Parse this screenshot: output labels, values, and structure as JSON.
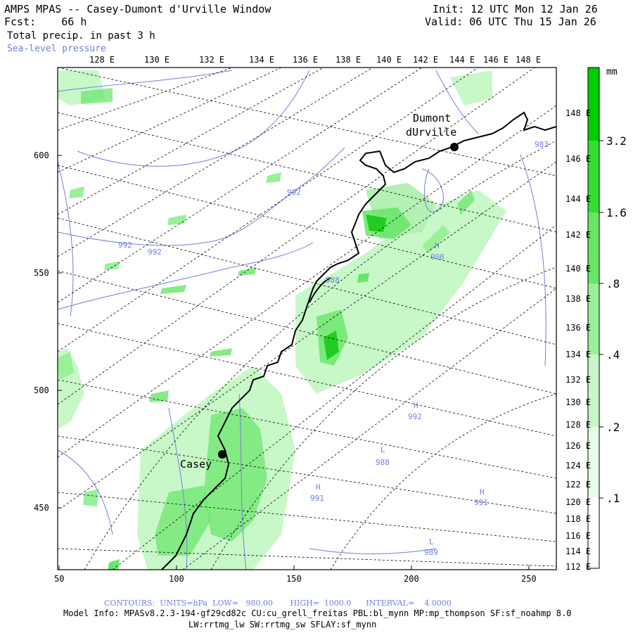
{
  "header": {
    "title": "AMPS MPAS -- Casey-Dumont d'Urville Window",
    "forecast": "Fcst:    66 h",
    "field": "Total precip. in past 3 h",
    "overlay": "Sea-level pressure",
    "init": "Init: 12 UTC Mon 12 Jan 26",
    "valid": "Valid: 06 UTC Thu 15 Jan 26"
  },
  "top_lon_labels": [
    "128 E",
    "130 E",
    "132 E",
    "134 E",
    "136 E",
    "138 E",
    "140 E",
    "142 E",
    "144 E",
    "146 E",
    "148 E"
  ],
  "right_lon_labels": [
    "148 E",
    "146 E",
    "144 E",
    "142 E",
    "140 E",
    "138 E",
    "136 E",
    "134 E",
    "132 E",
    "130 E",
    "128 E",
    "126 E",
    "124 E",
    "122 E",
    "120 E",
    "118 E",
    "116 E",
    "114 E",
    "112 E"
  ],
  "y_axis_labels": [
    "600",
    "550",
    "500",
    "450"
  ],
  "x_axis_labels": [
    "50",
    "100",
    "150",
    "200",
    "250"
  ],
  "colorbar": {
    "unit": "mm",
    "labels": [
      "3.2",
      "1.6",
      ".8",
      ".4",
      ".2",
      ".1"
    ],
    "colors": [
      "#00cc00",
      "#33dd33",
      "#66e666",
      "#99f099",
      "#c8f8c8",
      "#e8fce8",
      "#ffffff"
    ]
  },
  "stations": [
    {
      "name": "Casey"
    },
    {
      "name_line1": "Dumont",
      "name_line2": "dUrville"
    }
  ],
  "pressure_labels": [
    "992",
    "992",
    "992",
    "988",
    "H",
    "990",
    "H",
    "992",
    "L",
    "988",
    "H",
    "991",
    "H",
    "991",
    "L",
    "989",
    "983"
  ],
  "footer": {
    "contours": "CONTOURS:  UNITS=hPa  LOW=   980.00       HIGH=  1000.0      INTERVAL=    4.0000",
    "model_info": "Model Info: MPASv8.2.3-194-gf29cd82c CU:cu_grell_freitas PBL:bl_mynn MP:mp_thompson SF:sf_noahmp 8.0",
    "model_info2": "LW:rrtmg_lw SW:rrtmg_sw SFLAY:sf_mynn"
  },
  "colors": {
    "contour": "#6f7fe0",
    "coast": "#000000",
    "precip_light": "#b4f0b4",
    "precip_mid": "#66e666",
    "precip_heavy": "#22cc22"
  }
}
